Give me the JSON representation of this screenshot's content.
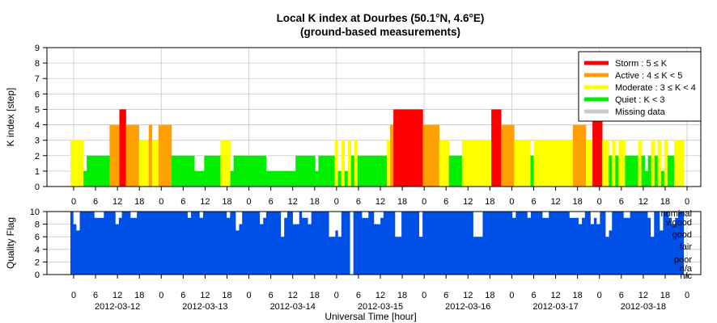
{
  "chart_data": [
    {
      "type": "bar",
      "title": "Local K index at Dourbes (50.1°N, 4.6°E)",
      "subtitle": "(ground-based measurements)",
      "ylabel": "K index [step]",
      "ylim": [
        0,
        9
      ],
      "yticks": [
        "0",
        "1",
        "2",
        "3",
        "4",
        "5",
        "6",
        "7",
        "8",
        "9"
      ],
      "grid": true,
      "legend_position": "top-right",
      "legend": [
        {
          "label": "Storm : 5 ≤ K",
          "color": "#ff0000"
        },
        {
          "label": "Active : 4 ≤ K < 5",
          "color": "#ffa000"
        },
        {
          "label": "Moderate : 3 ≤ K < 4",
          "color": "#ffff00"
        },
        {
          "label": "Quiet : K < 3",
          "color": "#00ee00"
        },
        {
          "label": "Missing data",
          "color": "#cccccc"
        }
      ],
      "k_values": [
        3,
        3,
        3,
        3,
        1,
        2,
        2,
        2,
        2,
        2,
        2,
        2,
        4,
        4,
        4,
        5,
        5,
        4,
        4,
        4,
        4,
        3,
        3,
        3,
        4,
        3,
        3,
        4,
        4,
        4,
        4,
        2,
        2,
        2,
        2,
        2,
        2,
        2,
        1,
        1,
        1,
        2,
        2,
        2,
        2,
        2,
        3,
        3,
        3,
        1,
        2,
        2,
        2,
        2,
        2,
        2,
        2,
        2,
        2,
        2,
        1,
        1,
        1,
        1,
        1,
        1,
        1,
        1,
        1,
        2,
        2,
        2,
        2,
        2,
        2,
        1,
        2,
        2,
        2,
        2,
        2,
        3,
        1,
        3,
        1,
        3,
        2,
        3,
        2,
        2,
        2,
        2,
        2,
        2,
        2,
        2,
        2,
        3,
        4,
        5,
        5,
        5,
        5,
        5,
        5,
        5,
        5,
        5,
        4,
        4,
        4,
        4,
        4,
        3,
        3,
        3,
        2,
        2,
        2,
        2,
        3,
        3,
        3,
        3,
        3,
        3,
        3,
        3,
        3,
        5,
        5,
        5,
        4,
        4,
        4,
        4,
        3,
        3,
        3,
        3,
        3,
        2,
        3,
        3,
        3,
        3,
        3,
        3,
        3,
        3,
        3,
        3,
        3,
        3,
        4,
        4,
        4,
        4,
        3,
        3,
        5,
        5,
        5,
        3,
        3,
        2,
        3,
        2,
        3,
        3,
        2,
        2,
        2,
        2,
        3,
        2,
        1,
        2,
        3,
        2,
        3,
        1,
        3,
        2,
        2,
        3,
        3,
        3
      ],
      "x_tick_labels": [
        "0",
        "6",
        "12",
        "18",
        "0",
        "6",
        "12",
        "18",
        "0",
        "6",
        "12",
        "18",
        "0",
        "6",
        "12",
        "18",
        "0",
        "6",
        "12",
        "18",
        "0",
        "6",
        "12",
        "18",
        "0",
        "6",
        "12",
        "18",
        "0"
      ]
    },
    {
      "type": "bar",
      "ylabel": "Quality Flag",
      "xlabel": "Universal Time [hour]",
      "ylim": [
        0,
        10
      ],
      "yticks": [
        "0",
        "2",
        "4",
        "6",
        "8",
        "10"
      ],
      "flag_labels": [
        "nominal",
        "v.good",
        "good",
        "fair",
        "poor",
        "n/a",
        "n/c"
      ],
      "bar_color": "#0050e8",
      "x_tick_labels": [
        "0",
        "6",
        "12",
        "18",
        "0",
        "6",
        "12",
        "18",
        "0",
        "6",
        "12",
        "18",
        "0",
        "6",
        "12",
        "18",
        "0",
        "6",
        "12",
        "18",
        "0",
        "6",
        "12",
        "18",
        "0",
        "6",
        "12",
        "18",
        "0"
      ],
      "dates": [
        "2012-03-12",
        "2012-03-13",
        "2012-03-14",
        "2012-03-15",
        "2012-03-16",
        "2012-03-17",
        "2012-03-18"
      ],
      "dips": [
        {
          "h": 1,
          "v": 8
        },
        {
          "h": 2,
          "v": 7
        },
        {
          "h": 8,
          "v": 9
        },
        {
          "h": 9,
          "v": 9
        },
        {
          "h": 10,
          "v": 9
        },
        {
          "h": 15,
          "v": 8
        },
        {
          "h": 16,
          "v": 9
        },
        {
          "h": 20,
          "v": 9
        },
        {
          "h": 21,
          "v": 9
        },
        {
          "h": 39,
          "v": 9
        },
        {
          "h": 43,
          "v": 9
        },
        {
          "h": 52,
          "v": 9
        },
        {
          "h": 55,
          "v": 7
        },
        {
          "h": 56,
          "v": 8
        },
        {
          "h": 63,
          "v": 8
        },
        {
          "h": 64,
          "v": 9
        },
        {
          "h": 70,
          "v": 6
        },
        {
          "h": 71,
          "v": 9
        },
        {
          "h": 74,
          "v": 8
        },
        {
          "h": 75,
          "v": 8
        },
        {
          "h": 77,
          "v": 9
        },
        {
          "h": 78,
          "v": 9
        },
        {
          "h": 79,
          "v": 8
        },
        {
          "h": 86,
          "v": 6
        },
        {
          "h": 87,
          "v": 6
        },
        {
          "h": 88,
          "v": 7
        },
        {
          "h": 89,
          "v": 6
        },
        {
          "h": 93,
          "v": 0
        },
        {
          "h": 97,
          "v": 9
        },
        {
          "h": 98,
          "v": 9
        },
        {
          "h": 101,
          "v": 8
        },
        {
          "h": 102,
          "v": 8
        },
        {
          "h": 103,
          "v": 9
        },
        {
          "h": 108,
          "v": 6
        },
        {
          "h": 109,
          "v": 6
        },
        {
          "h": 116,
          "v": 6
        },
        {
          "h": 134,
          "v": 6
        },
        {
          "h": 135,
          "v": 6
        },
        {
          "h": 136,
          "v": 6
        },
        {
          "h": 147,
          "v": 9
        },
        {
          "h": 152,
          "v": 9
        },
        {
          "h": 157,
          "v": 9
        },
        {
          "h": 158,
          "v": 9
        },
        {
          "h": 166,
          "v": 9
        },
        {
          "h": 167,
          "v": 9
        },
        {
          "h": 168,
          "v": 9
        },
        {
          "h": 169,
          "v": 8
        },
        {
          "h": 170,
          "v": 9
        },
        {
          "h": 173,
          "v": 8
        },
        {
          "h": 174,
          "v": 9
        },
        {
          "h": 175,
          "v": 8
        },
        {
          "h": 178,
          "v": 6
        },
        {
          "h": 179,
          "v": 7
        },
        {
          "h": 184,
          "v": 9
        },
        {
          "h": 185,
          "v": 9
        },
        {
          "h": 192,
          "v": 9
        },
        {
          "h": 193,
          "v": 6
        },
        {
          "h": 196,
          "v": 7
        },
        {
          "h": 199,
          "v": 9
        },
        {
          "h": 200,
          "v": 8
        },
        {
          "h": 201,
          "v": 9
        }
      ]
    }
  ]
}
